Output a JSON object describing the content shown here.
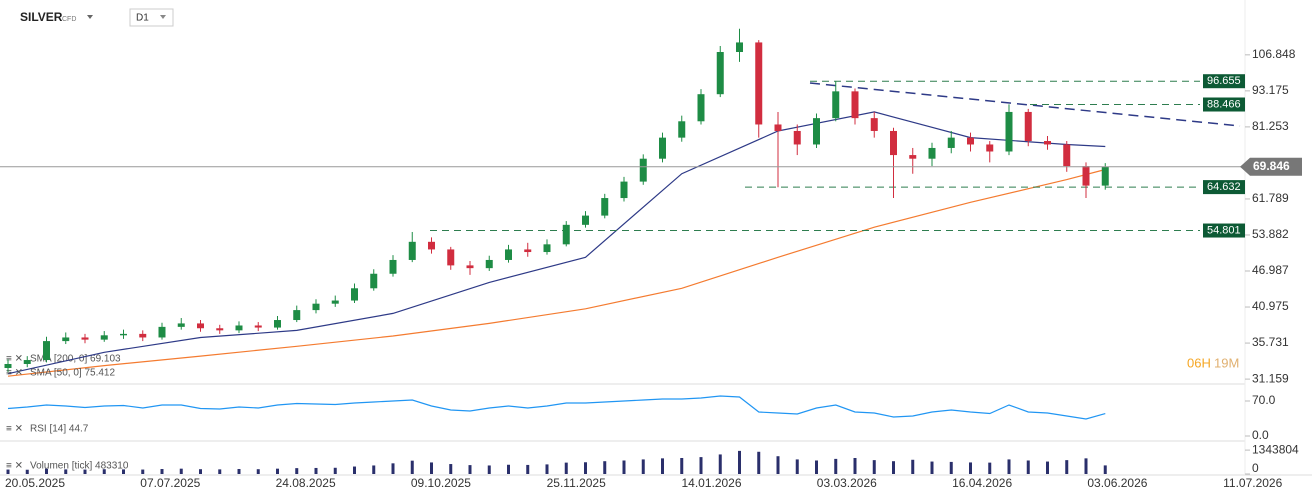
{
  "header": {
    "symbol": "SILVER",
    "tag": "CFD",
    "timeframe": "D1"
  },
  "chart_data": [
    {
      "type": "candlestick",
      "log_scale": true,
      "ylim": [
        30.7,
        131.6
      ],
      "yticks": [
        106.848,
        93.175,
        81.253,
        61.789,
        53.882,
        46.987,
        40.975,
        35.731,
        31.159
      ],
      "x_labels": [
        "20.05.2025",
        "07.07.2025",
        "24.08.2025",
        "09.10.2025",
        "25.11.2025",
        "14.01.2026",
        "03.03.2026",
        "16.04.2026",
        "03.06.2026",
        "11.07.2026"
      ],
      "up_color": "#1e8c45",
      "down_color": "#d12d3f",
      "open": [
        32.5,
        33.0,
        33.5,
        36.0,
        36.5,
        36.2,
        36.8,
        37.0,
        36.5,
        38.0,
        38.5,
        37.8,
        37.5,
        38.2,
        37.9,
        39.0,
        40.5,
        41.5,
        42.0,
        44.0,
        46.5,
        49.0,
        52.5,
        51.0,
        48.0,
        47.5,
        49.0,
        51.0,
        50.5,
        52.0,
        56.0,
        58.0,
        62.0,
        66.0,
        72.0,
        78.0,
        83.0,
        92.0,
        108.0,
        112.0,
        82.0,
        80.0,
        76.0,
        84.0,
        93.0,
        84.0,
        80.0,
        73.0,
        72.0,
        75.0,
        78.0,
        76.0,
        74.0,
        86.0,
        77.0,
        76.0,
        70.0,
        65.0
      ],
      "high": [
        33.6,
        34.0,
        36.6,
        37.2,
        37.0,
        37.4,
        37.6,
        37.5,
        38.6,
        39.3,
        39.0,
        38.3,
        38.8,
        38.7,
        39.6,
        41.2,
        42.2,
        42.8,
        44.8,
        47.3,
        49.9,
        54.5,
        53.4,
        51.5,
        48.8,
        49.8,
        51.9,
        52.3,
        53.0,
        56.8,
        59.0,
        63.0,
        67.2,
        73.2,
        79.5,
        84.8,
        93.8,
        110.5,
        118.0,
        113.0,
        86.0,
        82.0,
        85.5,
        96.6,
        94.0,
        86.0,
        81.0,
        75.0,
        76.5,
        80.0,
        79.5,
        77.0,
        88.5,
        87.0,
        78.5,
        77.0,
        71.0,
        70.8
      ],
      "low": [
        32.0,
        32.6,
        33.2,
        35.6,
        35.7,
        35.9,
        36.3,
        36.0,
        36.2,
        37.6,
        37.3,
        37.0,
        37.1,
        37.4,
        37.6,
        38.7,
        40.0,
        41.0,
        41.6,
        43.6,
        46.0,
        48.6,
        50.2,
        47.2,
        46.3,
        47.0,
        48.5,
        49.6,
        50.0,
        51.6,
        55.4,
        57.4,
        61.2,
        65.2,
        71.0,
        76.8,
        82.0,
        91.0,
        104.0,
        78.0,
        64.6,
        73.0,
        75.0,
        83.0,
        82.0,
        78.0,
        62.0,
        68.0,
        70.0,
        73.5,
        74.0,
        71.0,
        73.0,
        75.5,
        74.5,
        68.5,
        62.0,
        64.0
      ],
      "close": [
        33.0,
        33.5,
        36.0,
        36.5,
        36.2,
        36.8,
        37.0,
        36.5,
        38.0,
        38.5,
        37.8,
        37.5,
        38.2,
        37.9,
        39.0,
        40.5,
        41.5,
        42.0,
        44.0,
        46.5,
        49.0,
        52.5,
        51.0,
        48.0,
        47.5,
        49.0,
        51.0,
        50.5,
        52.0,
        56.0,
        58.0,
        62.0,
        66.0,
        72.0,
        78.0,
        83.0,
        92.0,
        108.0,
        112.0,
        82.0,
        80.0,
        76.0,
        84.0,
        93.0,
        84.0,
        80.0,
        73.0,
        72.0,
        75.0,
        78.0,
        76.0,
        74.0,
        86.0,
        77.0,
        76.0,
        70.0,
        65.0,
        69.846
      ],
      "last_price": 69.846,
      "levels": [
        96.655,
        88.466,
        64.632,
        54.801
      ],
      "level_color": "#0d5a35",
      "series": [
        {
          "name": "SMA [200, 0] 69.103",
          "color": "#f47b30",
          "x": [
            0,
            5,
            10,
            15,
            20,
            25,
            30,
            35,
            40,
            45,
            50,
            55,
            57
          ],
          "values": [
            31.5,
            32.8,
            34.0,
            35.3,
            36.7,
            38.5,
            40.7,
            44.0,
            49.5,
            55.5,
            61.0,
            66.5,
            69.103
          ]
        },
        {
          "name": "SMA [50, 0] 75.412",
          "color": "#2e3a87",
          "x": [
            0,
            5,
            10,
            15,
            20,
            25,
            30,
            35,
            40,
            45,
            50,
            55,
            57
          ],
          "values": [
            31.8,
            34.5,
            36.5,
            37.5,
            40.0,
            45.0,
            49.5,
            68.0,
            80.0,
            86.0,
            78.0,
            76.0,
            75.412
          ]
        }
      ],
      "countdown": [
        "06H",
        "19M"
      ]
    },
    {
      "type": "line",
      "name": "RSI [14] 44.7",
      "color": "#2196f3",
      "ylim": [
        -8,
        102
      ],
      "yticks": [
        {
          "value": 70,
          "label": "70.0"
        },
        {
          "value": 0,
          "label": "0.0"
        }
      ],
      "values": [
        55,
        58,
        62,
        60,
        57,
        60,
        61,
        56,
        62,
        62,
        55,
        54,
        58,
        56,
        62,
        65,
        64,
        63,
        66,
        68,
        70,
        72,
        60,
        52,
        50,
        56,
        60,
        56,
        60,
        66,
        66,
        68,
        70,
        72,
        74,
        74,
        76,
        80,
        78,
        48,
        46,
        44,
        56,
        62,
        48,
        46,
        38,
        40,
        48,
        52,
        48,
        45,
        62,
        48,
        46,
        40,
        34,
        44.7
      ]
    },
    {
      "type": "bar",
      "name": "Volumen [tick] 483310",
      "color": "#2a2f6b",
      "ylim": [
        0,
        1856000
      ],
      "yticks": [
        1343804,
        0
      ],
      "values": [
        250000,
        240000,
        300000,
        260000,
        250000,
        270000,
        260000,
        250000,
        280000,
        300000,
        270000,
        260000,
        280000,
        270000,
        300000,
        330000,
        340000,
        350000,
        420000,
        480000,
        600000,
        750000,
        650000,
        560000,
        500000,
        480000,
        520000,
        510000,
        540000,
        640000,
        660000,
        720000,
        760000,
        820000,
        880000,
        900000,
        950000,
        1100000,
        1300000,
        1250000,
        1000000,
        820000,
        760000,
        850000,
        900000,
        780000,
        720000,
        800000,
        700000,
        680000,
        650000,
        640000,
        820000,
        760000,
        700000,
        780000,
        880000,
        483310
      ]
    }
  ]
}
